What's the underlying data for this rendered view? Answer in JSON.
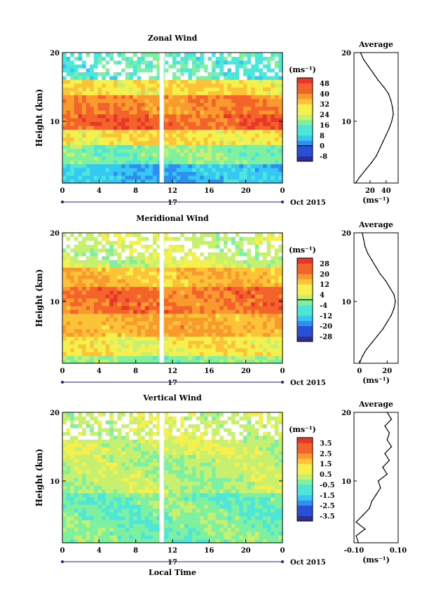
{
  "chart_data": [
    {
      "type": "heatmap",
      "title": "Zonal Wind",
      "ylabel": "Height (km)",
      "y_ticks": [
        "10",
        "20"
      ],
      "ylim": [
        1,
        20
      ],
      "x_ticks": [
        "0",
        "4",
        "8",
        "12",
        "16",
        "20",
        "0"
      ],
      "xlim": [
        0,
        24
      ],
      "date_label": "17",
      "month_label": "Oct 2015",
      "unit": "(ms⁻¹)",
      "colorbar_ticks": [
        "48",
        "40",
        "32",
        "24",
        "16",
        "8",
        "0",
        "-8"
      ],
      "clim": [
        -12,
        52
      ],
      "contour_level": 0,
      "layers": [
        {
          "height_range": [
            1,
            4
          ],
          "value": 6
        },
        {
          "height_range": [
            4,
            6.5
          ],
          "value": 18
        },
        {
          "height_range": [
            6.5,
            9
          ],
          "value": 30
        },
        {
          "height_range": [
            9,
            11
          ],
          "value": 44
        },
        {
          "height_range": [
            11,
            14
          ],
          "value": 40
        },
        {
          "height_range": [
            14,
            16
          ],
          "value": 30
        },
        {
          "height_range": [
            16,
            20
          ],
          "value": 14
        }
      ],
      "average_profile": {
        "title": "Average",
        "xlabel": "(ms⁻¹)",
        "x_ticks": [
          "20",
          "40"
        ],
        "xlim": [
          0,
          55
        ],
        "heights": [
          1,
          2,
          3,
          4,
          5,
          6,
          7,
          8,
          9,
          10,
          11,
          12,
          13,
          14,
          15,
          16,
          17,
          18,
          19,
          20
        ],
        "values": [
          2,
          8,
          15,
          22,
          28,
          32,
          36,
          40,
          44,
          47,
          49,
          48,
          46,
          43,
          37,
          30,
          24,
          18,
          12,
          8
        ]
      }
    },
    {
      "type": "heatmap",
      "title": "Meridional Wind",
      "ylabel": "Height (km)",
      "y_ticks": [
        "10",
        "20"
      ],
      "ylim": [
        1,
        20
      ],
      "x_ticks": [
        "0",
        "4",
        "8",
        "12",
        "16",
        "20",
        "0"
      ],
      "xlim": [
        0,
        24
      ],
      "date_label": "17",
      "month_label": "Oct 2015",
      "unit": "(ms⁻¹)",
      "colorbar_ticks": [
        "28",
        "20",
        "12",
        "4",
        "-4",
        "-12",
        "-20",
        "-28"
      ],
      "clim": [
        -32,
        32
      ],
      "contour_level": 0,
      "layers": [
        {
          "height_range": [
            1,
            2
          ],
          "value": -2
        },
        {
          "height_range": [
            2,
            5
          ],
          "value": 8
        },
        {
          "height_range": [
            5,
            8
          ],
          "value": 16
        },
        {
          "height_range": [
            8,
            12
          ],
          "value": 22
        },
        {
          "height_range": [
            12,
            15
          ],
          "value": 14
        },
        {
          "height_range": [
            15,
            20
          ],
          "value": 4
        }
      ],
      "average_profile": {
        "title": "Average",
        "xlabel": "(ms⁻¹)",
        "x_ticks": [
          "0",
          "20"
        ],
        "xlim": [
          -4,
          28
        ],
        "heights": [
          1,
          2,
          3,
          4,
          5,
          6,
          7,
          8,
          9,
          10,
          11,
          12,
          13,
          14,
          15,
          16,
          17,
          18,
          19,
          20
        ],
        "values": [
          0,
          2,
          5,
          9,
          13,
          17,
          20,
          23,
          25,
          26,
          25,
          22,
          19,
          15,
          12,
          9,
          6,
          4,
          3,
          2
        ]
      }
    },
    {
      "type": "heatmap",
      "title": "Vertical Wind",
      "ylabel": "Height (km)",
      "y_ticks": [
        "10",
        "20"
      ],
      "ylim": [
        1,
        20
      ],
      "x_ticks": [
        "0",
        "4",
        "8",
        "12",
        "16",
        "20",
        "0"
      ],
      "xlim": [
        0,
        24
      ],
      "date_label": "17",
      "month_label": "Oct 2015",
      "xlabel": "Local Time",
      "unit": "(ms⁻¹)",
      "colorbar_ticks": [
        "3.5",
        "2.5",
        "1.5",
        "0.5",
        "-0.5",
        "-1.5",
        "-2.5",
        "-3.5"
      ],
      "clim": [
        -4,
        4
      ],
      "layers": [
        {
          "height_range": [
            1,
            8
          ],
          "value": -0.4
        },
        {
          "height_range": [
            8,
            14
          ],
          "value": 0.2
        },
        {
          "height_range": [
            14,
            20
          ],
          "value": 0.5
        }
      ],
      "average_profile": {
        "title": "Average",
        "xlabel": "(ms⁻¹)",
        "x_ticks": [
          "-0.10",
          "0.10"
        ],
        "xlim": [
          -0.1,
          0.1
        ],
        "heights": [
          1,
          2,
          3,
          4,
          5,
          6,
          7,
          8,
          9,
          10,
          11,
          12,
          13,
          14,
          15,
          16,
          17,
          18,
          19,
          20
        ],
        "values": [
          -0.08,
          -0.09,
          -0.05,
          -0.09,
          -0.06,
          -0.03,
          -0.02,
          0.0,
          0.02,
          0.01,
          0.05,
          0.03,
          0.06,
          0.04,
          0.07,
          0.05,
          0.06,
          0.04,
          0.07,
          0.05
        ]
      }
    }
  ]
}
